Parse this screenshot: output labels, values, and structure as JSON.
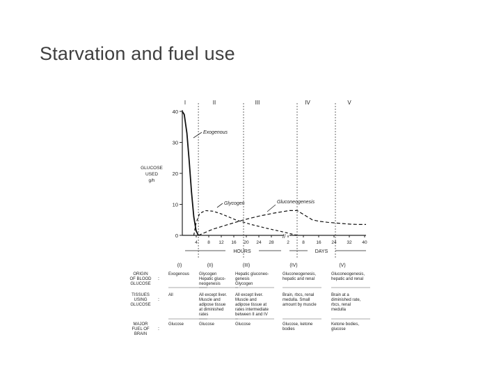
{
  "slide": {
    "title": "Starvation and fuel use"
  },
  "chart_data": {
    "type": "line",
    "ylabel": [
      "GLUCOSE",
      "USED",
      "g/h"
    ],
    "ylim": [
      0,
      40
    ],
    "y_ticks": [
      "0",
      "10",
      "20",
      "30",
      "40"
    ],
    "phases": [
      "I",
      "II",
      "III",
      "IV",
      "V"
    ],
    "x_ticks_hours": [
      "4",
      "8",
      "12",
      "16",
      "20",
      "24",
      "28"
    ],
    "x_ticks_days": [
      "2",
      "8",
      "16",
      "24",
      "32",
      "40"
    ],
    "x_axis_labels": [
      "HOURS",
      "DAYS"
    ],
    "series": [
      {
        "name": "Exogenous",
        "points": [
          [
            0,
            40
          ],
          [
            0.5,
            39
          ],
          [
            1.2,
            33
          ],
          [
            1.8,
            24
          ],
          [
            2.4,
            14
          ],
          [
            3.0,
            6
          ],
          [
            3.6,
            1.5
          ],
          [
            4.2,
            0
          ]
        ]
      },
      {
        "name": "Glycogen",
        "points": [
          [
            3.0,
            0
          ],
          [
            3.6,
            4
          ],
          [
            4.5,
            7
          ],
          [
            6,
            8
          ],
          [
            8,
            7.8
          ],
          [
            10,
            7
          ],
          [
            14,
            5
          ],
          [
            18,
            3.5
          ],
          [
            22,
            2.3
          ],
          [
            26,
            1.2
          ],
          [
            28,
            0.6
          ],
          [
            30,
            0
          ]
        ]
      },
      {
        "name": "Gluconeogenesis",
        "points": [
          [
            4.2,
            0
          ],
          [
            8,
            2
          ],
          [
            12,
            3.5
          ],
          [
            16,
            5
          ],
          [
            20,
            6.2
          ],
          [
            24,
            7.2
          ],
          [
            28,
            8
          ],
          [
            30,
            8
          ],
          [
            32,
            6.5
          ],
          [
            34,
            5
          ],
          [
            36,
            4.5
          ],
          [
            38,
            4.2
          ],
          [
            40,
            4
          ],
          [
            42,
            3.8
          ],
          [
            44,
            3.6
          ],
          [
            46,
            3.5
          ],
          [
            48,
            3.5
          ]
        ]
      }
    ]
  },
  "table": {
    "headers": [
      "(I)",
      "(II)",
      "(III)",
      "(IV)",
      "(V)"
    ],
    "rows": [
      {
        "label": [
          "ORIGIN",
          "OF BLOOD",
          "GLUCOSE"
        ],
        "cells": [
          [
            "Exogenous"
          ],
          [
            "Glycogen",
            "Hepatic gluco-",
            "neogenesis"
          ],
          [
            "Hepatic gluconeo-",
            "genesis",
            "Glycogen"
          ],
          [
            "Gluconeogenesis,",
            "hepatic and renal"
          ],
          [
            "Gluconeogenesis,",
            "hepatic and renal"
          ]
        ]
      },
      {
        "label": [
          "TISSUES",
          "USING",
          "GLUCOSE"
        ],
        "cells": [
          [
            "All"
          ],
          [
            "All except liver.",
            "Muscle and",
            "adipose tissue",
            "at diminished",
            "rates"
          ],
          [
            "All except liver.",
            "Muscle and",
            "adipose tissue at",
            "rates intermediate",
            "between II and IV"
          ],
          [
            "Brain, rbcs, renal",
            "medulla. Small",
            "amount by muscle"
          ],
          [
            "Brain at a",
            "diminished rate,",
            "rbcs, renal",
            "medulla"
          ]
        ]
      },
      {
        "label": [
          "MAJOR",
          "FUEL OF",
          "BRAIN"
        ],
        "cells": [
          [
            "Glucose"
          ],
          [
            "Glucose"
          ],
          [
            "Glucose"
          ],
          [
            "Glucose, ketone",
            "bodies"
          ],
          [
            "Ketone bodies,",
            "glucose"
          ]
        ]
      }
    ]
  }
}
